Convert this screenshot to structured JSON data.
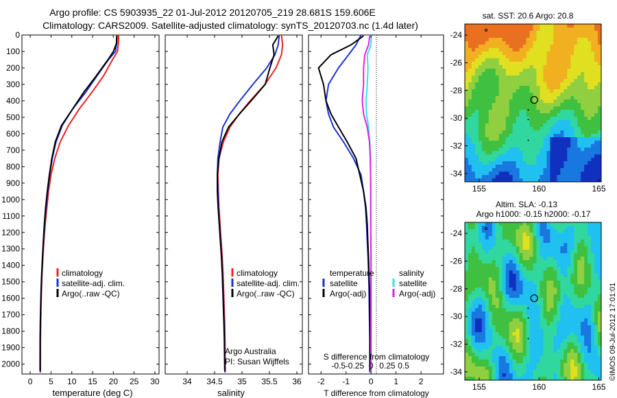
{
  "titles": {
    "line1": "Argo profile: CS 5903935_22 01-Jul-2012 20120705_219 28.681S 159.606E",
    "line2": "Climatology: CARS2009. Satellite-adjusted climatology: synTS_20120703.nc (1.4d later)"
  },
  "colors": {
    "red": "#e8231f",
    "blue": "#1a2fd6",
    "black": "#000000",
    "cyan": "#33e3e8",
    "magenta": "#e020e0"
  },
  "chart_data": [
    {
      "type": "line",
      "id": "temperature",
      "xlabel": "temperature (deg C)",
      "ylabel": "",
      "xlim": [
        -2,
        31
      ],
      "ylim": [
        2060,
        0
      ],
      "xticks": [
        0,
        5,
        10,
        15,
        20,
        25,
        30
      ],
      "xtick_labels": [
        "0",
        "5",
        "10",
        "15",
        "20",
        "25",
        "30"
      ],
      "yticks": [
        0,
        100,
        200,
        300,
        400,
        500,
        600,
        700,
        800,
        900,
        1000,
        1100,
        1200,
        1300,
        1400,
        1500,
        1600,
        1700,
        1800,
        1900,
        2000
      ],
      "ytick_labels": [
        "0",
        "100",
        "200",
        "300",
        "400",
        "500",
        "600",
        "700",
        "800",
        "900",
        "1000",
        "1100",
        "1200",
        "1300",
        "1400",
        "1500",
        "1600",
        "1700",
        "1800",
        "1900",
        "2000"
      ],
      "legend": [
        "climatology",
        "satellite-adj. clim.",
        "Argo(..raw -QC)"
      ],
      "series": [
        {
          "name": "climatology",
          "color": "red",
          "x": [
            21.3,
            21.2,
            21.0,
            19.8,
            17.6,
            14.8,
            11.8,
            9.2,
            7.2,
            5.9,
            5.0,
            4.4,
            4.0,
            3.6,
            3.3,
            3.05,
            2.85,
            2.7,
            2.6,
            2.52,
            2.47,
            2.45
          ],
          "y": [
            0,
            50,
            100,
            150,
            250,
            350,
            450,
            550,
            650,
            750,
            850,
            950,
            1050,
            1150,
            1250,
            1350,
            1450,
            1550,
            1650,
            1750,
            1850,
            2050
          ]
        },
        {
          "name": "satellite-adj. clim.",
          "color": "blue",
          "x": [
            20.9,
            20.8,
            20.5,
            18.8,
            16.0,
            13.3,
            10.2,
            7.7,
            6.2,
            5.3,
            4.7,
            4.2,
            3.8,
            3.5,
            3.2,
            3.0,
            2.8,
            2.65,
            2.55,
            2.47,
            2.42,
            2.4
          ],
          "y": [
            0,
            50,
            100,
            150,
            250,
            350,
            450,
            550,
            650,
            750,
            850,
            950,
            1050,
            1150,
            1250,
            1350,
            1450,
            1550,
            1650,
            1750,
            1850,
            2050
          ]
        },
        {
          "name": "Argo(..raw -QC)",
          "color": "black",
          "x": [
            20.8,
            20.6,
            20.2,
            18.6,
            15.8,
            13.0,
            10.0,
            7.6,
            6.1,
            5.2,
            4.6,
            4.1,
            3.7,
            3.4,
            3.15,
            2.95,
            2.75,
            2.6,
            2.5,
            2.43,
            2.38,
            2.36
          ],
          "y": [
            5,
            50,
            100,
            150,
            250,
            350,
            450,
            550,
            650,
            750,
            850,
            950,
            1050,
            1150,
            1250,
            1350,
            1450,
            1550,
            1650,
            1750,
            1850,
            2040
          ]
        }
      ]
    },
    {
      "type": "line",
      "id": "salinity",
      "xlabel": "salinity",
      "xlim": [
        33.6,
        36.1
      ],
      "ylim": [
        2060,
        0
      ],
      "xticks": [
        34,
        34.5,
        35,
        35.5,
        36
      ],
      "xtick_labels": [
        "34",
        "34.5",
        "35",
        "35.5",
        "36"
      ],
      "legend": [
        "climatology",
        "satellite-adj. clim.",
        "Argo(..raw -QC)"
      ],
      "annotation": [
        "Argo Australia",
        "PI: Susan Wijffels"
      ],
      "series": [
        {
          "name": "climatology",
          "color": "red",
          "x": [
            35.72,
            35.74,
            35.72,
            35.62,
            35.42,
            35.15,
            34.95,
            34.78,
            34.66,
            34.58,
            34.56,
            34.57,
            34.58,
            34.6,
            34.62,
            34.64,
            34.655,
            34.665,
            34.675,
            34.685,
            34.69,
            34.695
          ],
          "y": [
            0,
            60,
            120,
            200,
            300,
            400,
            480,
            560,
            650,
            750,
            850,
            950,
            1050,
            1150,
            1250,
            1350,
            1450,
            1550,
            1650,
            1750,
            1850,
            2050
          ]
        },
        {
          "name": "satellite-adj. clim.",
          "color": "blue",
          "x": [
            35.68,
            35.66,
            35.6,
            35.45,
            35.2,
            34.96,
            34.78,
            34.65,
            34.6,
            34.56,
            34.55,
            34.56,
            34.575,
            34.59,
            34.61,
            34.63,
            34.645,
            34.655,
            34.665,
            34.675,
            34.682,
            34.688
          ],
          "y": [
            0,
            60,
            120,
            200,
            300,
            400,
            480,
            560,
            650,
            750,
            850,
            950,
            1050,
            1150,
            1250,
            1350,
            1450,
            1550,
            1650,
            1750,
            1850,
            2050
          ]
        },
        {
          "name": "Argo(..raw -QC)",
          "color": "black",
          "x": [
            35.66,
            35.55,
            35.6,
            35.5,
            35.42,
            35.18,
            34.94,
            34.76,
            34.64,
            34.58,
            34.55,
            34.55,
            34.565,
            34.585,
            34.605,
            34.625,
            34.64,
            34.65,
            34.66,
            34.67,
            34.678,
            34.685
          ],
          "y": [
            5,
            60,
            120,
            200,
            300,
            400,
            480,
            560,
            650,
            750,
            850,
            950,
            1050,
            1150,
            1250,
            1350,
            1450,
            1550,
            1650,
            1750,
            1850,
            2040
          ]
        }
      ]
    },
    {
      "type": "line",
      "id": "difference",
      "xlabel": "T difference from climatology",
      "xlabel2": "S difference from climatology",
      "xlim": [
        -2.5,
        2.9
      ],
      "ylim": [
        2060,
        0
      ],
      "xticks": [
        -2,
        -1,
        0,
        1,
        2
      ],
      "xtick_labels": [
        "-2",
        "-1",
        "0",
        "1",
        "2"
      ],
      "xticks2": [
        -0.5,
        -0.25,
        0,
        0.25,
        0.5
      ],
      "xtick2_labels": [
        "-0.5",
        "-0.25",
        "0",
        "0.25",
        "0.5"
      ],
      "legend_left": {
        "heading": "temperature",
        "items": [
          "satellite",
          "Argo(-adj)"
        ]
      },
      "legend_right": {
        "heading": "salinity",
        "items": [
          "satellite",
          "Argo(-adj)"
        ]
      },
      "series": [
        {
          "name": "satellite",
          "group": "temperature",
          "color": "blue",
          "x": [
            -0.4,
            -0.6,
            -0.9,
            -1.3,
            -1.7,
            -1.8,
            -1.7,
            -1.5,
            -1.1,
            -0.7,
            -0.4,
            -0.3,
            -0.22,
            -0.18,
            -0.15,
            -0.12,
            -0.1,
            -0.08,
            -0.07,
            -0.06,
            -0.05,
            -0.05
          ],
          "y": [
            0,
            60,
            120,
            200,
            300,
            400,
            480,
            560,
            650,
            750,
            850,
            950,
            1050,
            1150,
            1250,
            1350,
            1450,
            1550,
            1650,
            1750,
            1850,
            2050
          ]
        },
        {
          "name": "Argo(-adj)",
          "group": "temperature",
          "color": "black",
          "x": [
            -0.3,
            -0.8,
            -1.6,
            -2.1,
            -1.9,
            -1.8,
            -1.6,
            -1.3,
            -0.95,
            -0.6,
            -0.45,
            -0.3,
            -0.2,
            -0.15,
            -0.13,
            -0.1,
            -0.08,
            -0.06,
            -0.05,
            -0.04,
            -0.04,
            -0.04
          ],
          "y": [
            5,
            60,
            120,
            200,
            300,
            400,
            480,
            560,
            650,
            750,
            850,
            950,
            1050,
            1150,
            1250,
            1350,
            1450,
            1550,
            1650,
            1750,
            1850,
            2040
          ]
        },
        {
          "name": "satellite",
          "group": "salinity",
          "color": "cyan",
          "x": [
            0.01,
            0,
            -0.15,
            -0.12,
            -0.15,
            -0.2,
            -0.18,
            -0.1,
            -0.05,
            -0.02,
            -0.02,
            -0.01,
            -0.01,
            -0.01,
            0,
            0,
            0,
            0,
            0,
            0,
            0,
            0
          ],
          "y": [
            0,
            60,
            120,
            200,
            300,
            400,
            480,
            560,
            650,
            750,
            850,
            950,
            1050,
            1150,
            1250,
            1350,
            1450,
            1550,
            1650,
            1750,
            1850,
            2050
          ]
        },
        {
          "name": "Argo(-adj)",
          "group": "salinity",
          "color": "magenta",
          "x": [
            -0.05,
            -0.1,
            -0.25,
            -0.3,
            -0.3,
            -0.35,
            -0.3,
            -0.15,
            -0.06,
            -0.03,
            -0.02,
            -0.01,
            -0.01,
            -0.01,
            -0.01,
            0,
            0,
            0,
            0,
            0,
            0,
            0
          ],
          "y": [
            5,
            60,
            120,
            200,
            300,
            400,
            480,
            560,
            650,
            750,
            850,
            950,
            1050,
            1150,
            1250,
            1350,
            1450,
            1550,
            1650,
            1750,
            1850,
            2040
          ]
        }
      ]
    },
    {
      "type": "heatmap",
      "id": "sst-map",
      "title": "sat. SST: 20.6  Argo: 20.8",
      "xlim": [
        153.8,
        165.2
      ],
      "ylim": [
        -34.6,
        -23.2
      ],
      "xticks": [
        155,
        160,
        165
      ],
      "xtick_labels": [
        "155",
        "160",
        "165"
      ],
      "yticks": [
        -24,
        -26,
        -28,
        -30,
        -32,
        -34
      ],
      "ytick_labels": [
        "-24",
        "-26",
        "-28",
        "-30",
        "-32",
        "-34"
      ],
      "float_position": [
        159.6,
        -28.68
      ],
      "palette": [
        "#1030c0",
        "#1878e0",
        "#20c0f0",
        "#30d8a0",
        "#40c040",
        "#90d040",
        "#e0e020",
        "#f0b020",
        "#e87020"
      ]
    },
    {
      "type": "heatmap",
      "id": "sla-map",
      "title": "Altim. SLA: -0.13",
      "subtitle": "Argo h1000: -0.15  h2000: -0.17",
      "xlim": [
        153.8,
        165.2
      ],
      "ylim": [
        -34.6,
        -23.2
      ],
      "xticks": [
        155,
        160,
        165
      ],
      "xtick_labels": [
        "155",
        "160",
        "165"
      ],
      "yticks": [
        -24,
        -26,
        -28,
        -30,
        -32,
        -34
      ],
      "ytick_labels": [
        "-24",
        "-26",
        "-28",
        "-30",
        "-32",
        "-34"
      ],
      "float_position": [
        159.6,
        -28.68
      ],
      "palette": [
        "#1030c0",
        "#1878e0",
        "#20c0f0",
        "#30d8a0",
        "#40c040",
        "#90d040",
        "#e0e020"
      ]
    }
  ],
  "watermark": "©IMOS 09-Jul-2012 17:01:01"
}
